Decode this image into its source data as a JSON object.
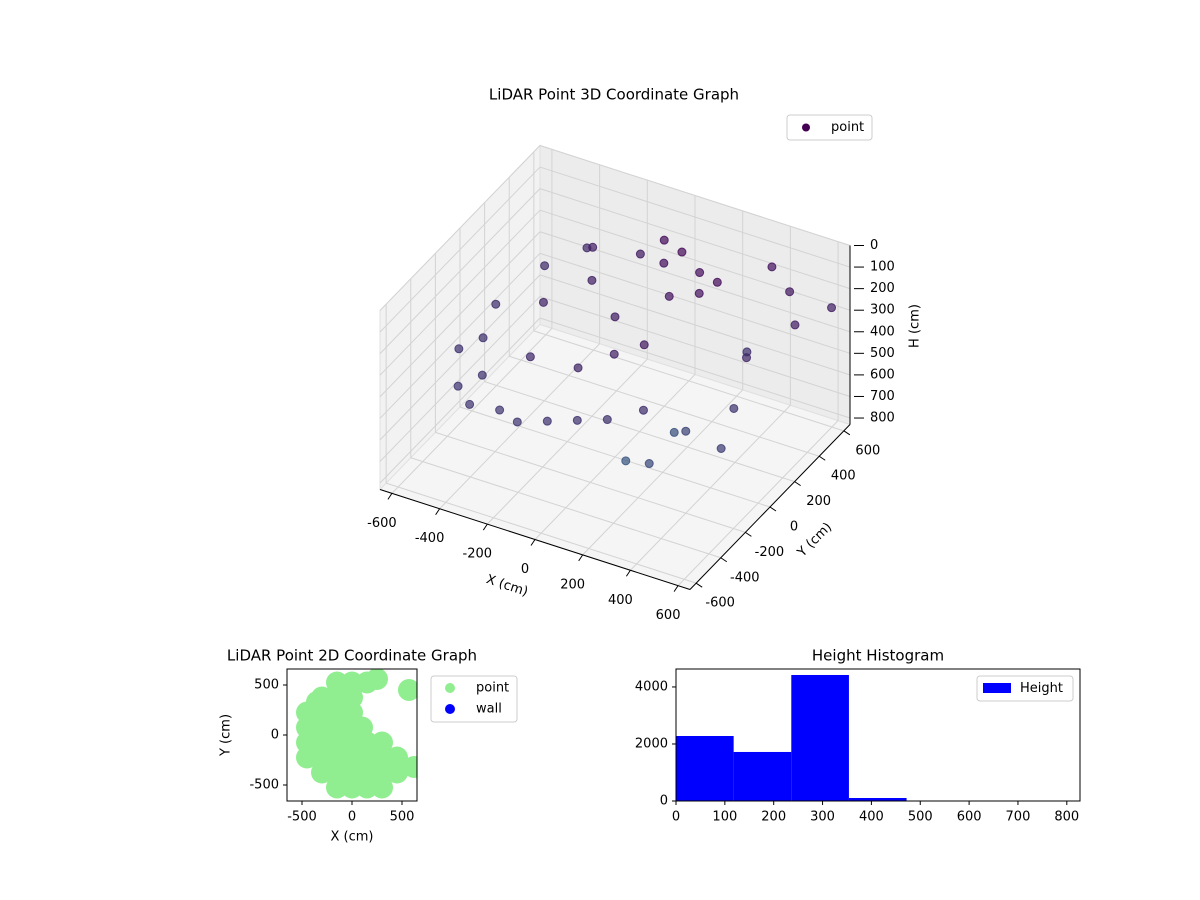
{
  "chart_data": [
    {
      "type": "scatter3d",
      "title": "LiDAR Point 3D Coordinate Graph",
      "xlabel": "X (cm)",
      "ylabel": "Y (cm)",
      "zlabel": "H (cm)",
      "xlim": [
        -650,
        650
      ],
      "ylim": [
        -650,
        650
      ],
      "zlim": [
        0,
        830
      ],
      "z_inverted": true,
      "xticks": [
        -600,
        -400,
        -200,
        0,
        200,
        400,
        600
      ],
      "yticks": [
        -600,
        -400,
        -200,
        0,
        200,
        400,
        600
      ],
      "zticks": [
        0,
        100,
        200,
        300,
        400,
        500,
        600,
        700,
        800
      ],
      "grid": true,
      "legend": "upper right",
      "series": [
        {
          "name": "point",
          "color": "#440154",
          "colormap": [
            "#440154",
            "#2c728e"
          ],
          "x": [
            -500,
            -500,
            -450,
            -400,
            -350,
            -300,
            -200,
            -100,
            0,
            100,
            200,
            300,
            -300,
            -200,
            -200,
            0,
            0,
            100,
            200,
            -100,
            -300,
            -450,
            -350,
            0,
            100,
            200,
            250,
            150,
            50,
            300,
            400,
            500,
            600,
            500,
            450,
            550,
            600,
            400,
            300,
            350,
            200,
            650
          ],
          "y": [
            0,
            -300,
            300,
            -500,
            450,
            -600,
            -550,
            -600,
            -550,
            -500,
            -450,
            -350,
            0,
            200,
            -300,
            -300,
            0,
            -200,
            -150,
            400,
            400,
            -200,
            -400,
            400,
            350,
            300,
            200,
            150,
            300,
            250,
            500,
            450,
            300,
            100,
            200,
            -100,
            -300,
            -200,
            -100,
            -400,
            -300,
            500
          ],
          "z": [
            300,
            330,
            280,
            350,
            250,
            340,
            360,
            350,
            340,
            330,
            320,
            300,
            220,
            200,
            260,
            240,
            180,
            200,
            150,
            160,
            200,
            320,
            340,
            60,
            50,
            80,
            100,
            120,
            90,
            60,
            100,
            150,
            180,
            250,
            300,
            350,
            400,
            450,
            550,
            500,
            600,
            200
          ]
        }
      ]
    },
    {
      "type": "scatter",
      "title": "LiDAR Point 2D Coordinate Graph",
      "xlabel": "X (cm)",
      "ylabel": "Y (cm)",
      "xlim": [
        -650,
        650
      ],
      "ylim": [
        -660,
        660
      ],
      "xticks": [
        -500,
        0,
        500
      ],
      "yticks": [
        -500,
        0,
        500
      ],
      "legend": "outside right",
      "series": [
        {
          "name": "point",
          "color": "#90ee90",
          "x": [
            -150,
            0,
            150,
            -300,
            -150,
            0,
            -450,
            -300,
            -150,
            0,
            -450,
            -300,
            -150,
            0,
            100,
            -450,
            -300,
            -150,
            0,
            150,
            300,
            -450,
            -300,
            -150,
            0,
            150,
            300,
            450,
            -300,
            -150,
            0,
            150,
            300,
            450,
            -150,
            0,
            150,
            300,
            250,
            570,
            620,
            -350
          ],
          "y": [
            525,
            525,
            525,
            375,
            375,
            375,
            225,
            225,
            225,
            225,
            75,
            75,
            75,
            75,
            75,
            -75,
            -75,
            -75,
            -75,
            -75,
            -75,
            -225,
            -225,
            -225,
            -225,
            -225,
            -225,
            -225,
            -375,
            -375,
            -375,
            -375,
            -375,
            -375,
            -525,
            -525,
            -525,
            -525,
            560,
            450,
            -320,
            330
          ]
        },
        {
          "name": "wall",
          "color": "#0000ff",
          "x": [],
          "y": []
        }
      ]
    },
    {
      "type": "histogram",
      "title": "Height Histogram",
      "name": "Height",
      "color": "#0000ff",
      "bins": [
        0,
        118,
        236,
        354,
        472,
        590,
        708,
        826
      ],
      "counts": [
        2280,
        1720,
        4420,
        105,
        8,
        4,
        2
      ],
      "xlim": [
        0,
        827
      ],
      "ylim": [
        0,
        4630
      ],
      "xticks": [
        0,
        100,
        200,
        300,
        400,
        500,
        600,
        700,
        800
      ],
      "yticks": [
        0,
        2000,
        4000
      ],
      "legend": "upper right"
    }
  ]
}
